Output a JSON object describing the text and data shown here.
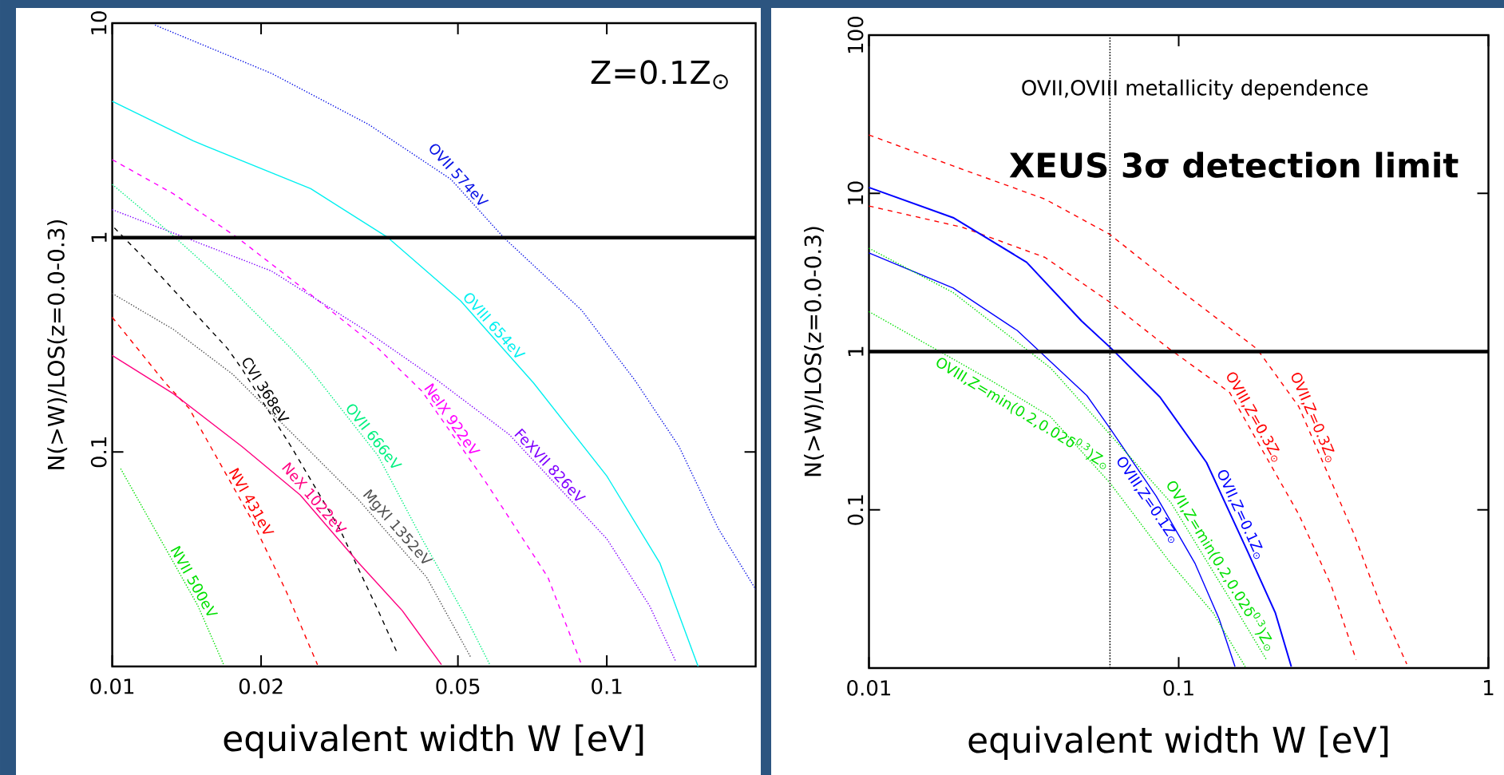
{
  "chart_data": [
    {
      "type": "line",
      "xlabel": "equivalent width W [eV]",
      "ylabel": "N(>W)/LOS(z=0.0-0.3)",
      "log": "xy",
      "grid": false,
      "xlim": [
        0.01,
        0.2
      ],
      "ylim": [
        0.01,
        10
      ],
      "xticks": [
        0.01,
        0.02,
        0.05,
        0.1
      ],
      "yticks": [
        0.1,
        1,
        10
      ],
      "annotations": [
        "Z=0.1Z$_{⊙}$"
      ],
      "ref_lines": [
        {
          "axis": "y",
          "value": 1,
          "color": "#000000",
          "line_style": "solid"
        }
      ],
      "series": [
        {
          "name": "OVII 574eV",
          "color": "#0a14e6",
          "line_style": "dotted",
          "x": [
            0.0122,
            0.021,
            0.033,
            0.0484,
            0.0619,
            0.0889,
            0.114,
            0.14,
            0.168,
            0.2
          ],
          "values": [
            9.8,
            5.83,
            3.37,
            1.87,
            1.0,
            0.459,
            0.216,
            0.106,
            0.044,
            0.0229
          ]
        },
        {
          "name": "OVIII 654eV",
          "color": "#00f0f0",
          "line_style": "solid",
          "x": [
            0.01,
            0.0146,
            0.0252,
            0.0361,
            0.0506,
            0.0711,
            0.1,
            0.128,
            0.153
          ],
          "values": [
            4.32,
            2.82,
            1.69,
            1.0,
            0.508,
            0.21,
            0.0773,
            0.0304,
            0.01
          ]
        },
        {
          "name": "NeIX 922eV",
          "color": "#ff00ff",
          "line_style": "dashed",
          "x": [
            0.01,
            0.0133,
            0.0179,
            0.024,
            0.0345,
            0.0423,
            0.0567,
            0.076,
            0.0889
          ],
          "values": [
            2.31,
            1.6,
            1.0,
            0.593,
            0.304,
            0.192,
            0.0734,
            0.0261,
            0.0102
          ]
        },
        {
          "name": "FeXVII 826eV",
          "color": "#8000ff",
          "line_style": "dotted",
          "x": [
            0.01,
            0.0133,
            0.021,
            0.0323,
            0.0452,
            0.0634,
            0.1,
            0.122,
            0.138
          ],
          "values": [
            1.35,
            1.05,
            0.698,
            0.373,
            0.218,
            0.121,
            0.0394,
            0.0192,
            0.0105
          ]
        },
        {
          "name": "OVII 666eV",
          "color": "#00f080",
          "line_style": "dotted",
          "x": [
            0.01,
            0.0131,
            0.0168,
            0.023,
            0.0251,
            0.0345,
            0.0423,
            0.0518,
            0.058
          ],
          "values": [
            1.77,
            1.05,
            0.625,
            0.304,
            0.244,
            0.0958,
            0.0394,
            0.0171,
            0.0102
          ]
        },
        {
          "name": "CVI 368eV",
          "color": "#000000",
          "line_style": "dashed",
          "x": [
            0.0101,
            0.0119,
            0.0171,
            0.0183,
            0.023,
            0.0288,
            0.0345,
            0.0378
          ],
          "values": [
            1.11,
            0.754,
            0.304,
            0.244,
            0.106,
            0.044,
            0.0182,
            0.0114
          ]
        },
        {
          "name": "MgXI 1352eV",
          "color": "#505050",
          "line_style": "dotted",
          "x": [
            0.01,
            0.0133,
            0.0175,
            0.024,
            0.0315,
            0.0432,
            0.053
          ],
          "values": [
            0.549,
            0.373,
            0.231,
            0.112,
            0.0598,
            0.0261,
            0.0111
          ]
        },
        {
          "name": "NVI 431eV",
          "color": "#ff0000",
          "line_style": "dashed",
          "x": [
            0.01,
            0.0128,
            0.0143,
            0.0191,
            0.0225,
            0.026
          ],
          "values": [
            0.425,
            0.21,
            0.16,
            0.0488,
            0.0223,
            0.0102
          ]
        },
        {
          "name": "NeX 1022eV",
          "color": "#ff0080",
          "line_style": "solid",
          "x": [
            0.01,
            0.0133,
            0.0183,
            0.024,
            0.0315,
            0.0386,
            0.0463
          ],
          "values": [
            0.282,
            0.187,
            0.106,
            0.063,
            0.0304,
            0.0182,
            0.0102
          ]
        },
        {
          "name": "NVII 500eV",
          "color": "#00e000",
          "line_style": "dotted",
          "x": [
            0.0104,
            0.0125,
            0.0149,
            0.0168
          ],
          "values": [
            0.0836,
            0.0394,
            0.0192,
            0.0102
          ]
        }
      ]
    },
    {
      "type": "line",
      "xlabel": "equivalent width W [eV]",
      "ylabel": "N(>W)/LOS(z=0.0-0.3)",
      "log": "xy",
      "grid": false,
      "xlim": [
        0.01,
        1
      ],
      "ylim": [
        0.01,
        100
      ],
      "xticks": [
        0.01,
        0.1,
        1
      ],
      "yticks": [
        0.1,
        1,
        10,
        100
      ],
      "annotations": [
        "OVII,OVIII  metallicity  dependence"
      ],
      "ref_lines": [
        {
          "axis": "y",
          "value": 1,
          "color": "#000000",
          "line_style": "solid"
        },
        {
          "axis": "x",
          "value": 0.06,
          "label": "XEUS 3σ detection limit",
          "color": "#000000",
          "line_style": "dotted"
        }
      ],
      "series": [
        {
          "name": "OVII,Z=0.3Z$_{⊙}$",
          "color": "#ff0000",
          "line_style": "dashed",
          "x": [
            0.01,
            0.0187,
            0.037,
            0.0598,
            0.103,
            0.179,
            0.244,
            0.367,
            0.452,
            0.545
          ],
          "values": [
            23.4,
            14.9,
            9.2,
            5.52,
            2.37,
            1.04,
            0.45,
            0.0714,
            0.024,
            0.0106
          ]
        },
        {
          "name": "OVIII,Z=0.3Z$_{⊙}$",
          "color": "#ff0000",
          "line_style": "dashed",
          "x": [
            0.01,
            0.02,
            0.037,
            0.0598,
            0.0933,
            0.146,
            0.244,
            0.31,
            0.374
          ],
          "values": [
            8.32,
            6.11,
            3.94,
            2.06,
            1.04,
            0.552,
            0.0938,
            0.0337,
            0.0113
          ]
        },
        {
          "name": "OVII,Z=0.1Z$_{⊙}$",
          "color": "#0000ff",
          "line_style": "solid",
          "x": [
            0.01,
            0.0187,
            0.0323,
            0.0486,
            0.0608,
            0.087,
            0.123,
            0.167,
            0.205,
            0.231
          ],
          "values": [
            10.9,
            7.02,
            3.67,
            1.56,
            1.04,
            0.516,
            0.199,
            0.0544,
            0.0224,
            0.0102
          ]
        },
        {
          "name": "OVIII,Z=0.1Z$_{⊙}$",
          "color": "#0000ff",
          "line_style": "solid",
          "x": [
            0.01,
            0.0187,
            0.0301,
            0.0505,
            0.0603,
            0.0846,
            0.113,
            0.135,
            0.152
          ],
          "values": [
            4.2,
            2.52,
            1.36,
            0.528,
            0.323,
            0.122,
            0.0457,
            0.0205,
            0.0102
          ]
        },
        {
          "name": "OVII,Z=min(0.2,0.02δ$^{0.3}$)Z$_{⊙}$",
          "color": "#00e000",
          "line_style": "dotted",
          "x": [
            0.01,
            0.0187,
            0.0386,
            0.0944,
            0.146,
            0.192
          ],
          "values": [
            4.5,
            2.36,
            0.788,
            0.111,
            0.0275,
            0.0113
          ]
        },
        {
          "name": "OVIII,Z=min(0.2,0.02δ$^{0.3}$)Z$_{⊙}$",
          "color": "#00e000",
          "line_style": "dotted",
          "x": [
            0.01,
            0.0158,
            0.0247,
            0.0386,
            0.0603,
            0.0944,
            0.129,
            0.164
          ],
          "values": [
            1.79,
            1.08,
            0.659,
            0.387,
            0.146,
            0.0457,
            0.0224,
            0.0102
          ]
        }
      ]
    }
  ]
}
